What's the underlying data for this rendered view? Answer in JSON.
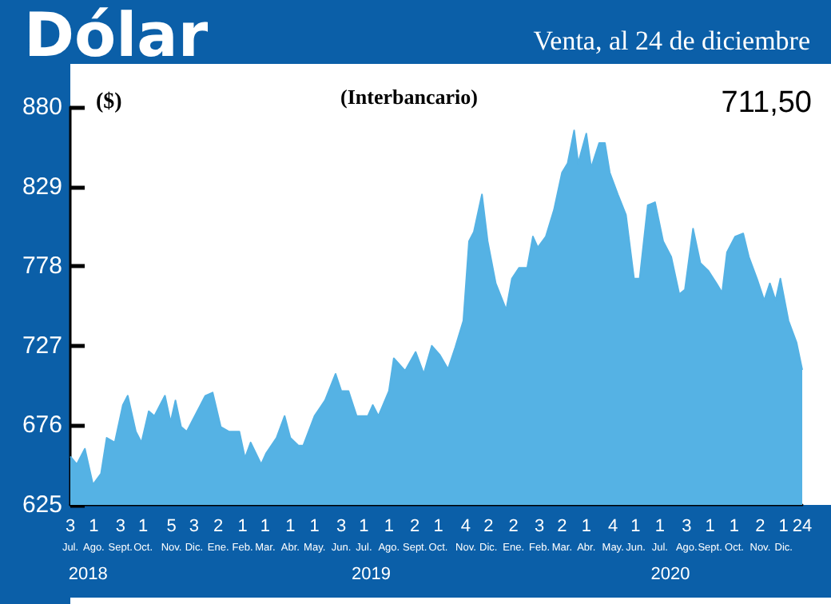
{
  "chart_data": {
    "type": "area",
    "title": "Dólar",
    "subtitle": "Venta, al 24 de diciembre",
    "ylabel": "($)",
    "annotations": [
      "(Interbancario)",
      "711,50"
    ],
    "color": "#55b2e4",
    "x": [
      "2018-07-03",
      "2018-07-11",
      "2018-07-21",
      "2018-07-31",
      "2018-08-10",
      "2018-08-17",
      "2018-08-27",
      "2018-09-06",
      "2018-09-12",
      "2018-09-22",
      "2018-09-29",
      "2018-10-08",
      "2018-10-15",
      "2018-10-22",
      "2018-10-28",
      "2018-11-04",
      "2018-11-10",
      "2018-11-17",
      "2018-11-24",
      "2018-12-07",
      "2018-12-17",
      "2018-12-26",
      "2019-01-05",
      "2019-01-15",
      "2019-01-28",
      "2019-02-04",
      "2019-02-11",
      "2019-02-24",
      "2019-03-02",
      "2019-03-15",
      "2019-03-25",
      "2019-04-01",
      "2019-04-11",
      "2019-04-17",
      "2019-05-01",
      "2019-05-14",
      "2019-05-27",
      "2019-06-03",
      "2019-06-12",
      "2019-06-22",
      "2019-07-06",
      "2019-07-12",
      "2019-07-19",
      "2019-08-01",
      "2019-08-07",
      "2019-08-21",
      "2019-09-03",
      "2019-09-13",
      "2019-09-23",
      "2019-10-03",
      "2019-10-13",
      "2019-10-22",
      "2019-11-01",
      "2019-11-08",
      "2019-11-14",
      "2019-11-24",
      "2019-12-01",
      "2019-12-11",
      "2019-12-24",
      "2019-12-31",
      "2020-01-09",
      "2020-01-19",
      "2020-01-26",
      "2020-02-01",
      "2020-02-11",
      "2020-02-21",
      "2020-03-02",
      "2020-03-09",
      "2020-03-17",
      "2020-03-22",
      "2020-04-01",
      "2020-04-07",
      "2020-04-17",
      "2020-04-24",
      "2020-04-30",
      "2020-05-10",
      "2020-05-20",
      "2020-05-30",
      "2020-06-06",
      "2020-06-16",
      "2020-06-25",
      "2020-07-05",
      "2020-07-15",
      "2020-07-25",
      "2020-08-01",
      "2020-08-11",
      "2020-08-20",
      "2020-08-30",
      "2020-09-09",
      "2020-09-16",
      "2020-09-22",
      "2020-10-02",
      "2020-10-12",
      "2020-10-19",
      "2020-10-29",
      "2020-11-07",
      "2020-11-14",
      "2020-11-21",
      "2020-11-27",
      "2020-12-07",
      "2020-12-17",
      "2020-12-24"
    ],
    "values": [
      656,
      651,
      661,
      638,
      645,
      668,
      665,
      689,
      695,
      672,
      665,
      685,
      682,
      689,
      695,
      678,
      692,
      675,
      672,
      685,
      695,
      697,
      675,
      672,
      672,
      655,
      665,
      651,
      658,
      668,
      682,
      668,
      663,
      663,
      682,
      692,
      709,
      698,
      698,
      682,
      682,
      689,
      682,
      698,
      719,
      711,
      723,
      709,
      727,
      721,
      712,
      726,
      743,
      794,
      800,
      824,
      794,
      767,
      750,
      770,
      777,
      777,
      797,
      790,
      797,
      814,
      838,
      844,
      865,
      844,
      863,
      841,
      857,
      857,
      838,
      824,
      811,
      770,
      770,
      817,
      819,
      794,
      784,
      760,
      763,
      802,
      780,
      775,
      767,
      761,
      787,
      797,
      799,
      784,
      770,
      756,
      767,
      756,
      770,
      743,
      729,
      711.5
    ],
    "xlim": [
      "2018-07-03",
      "2020-12-24"
    ],
    "xticks": [
      {
        "value": "2018-07-03",
        "label": "3\nJul."
      },
      {
        "value": "2018-08-01",
        "label": "1\nAgo."
      },
      {
        "value": "2018-09-03",
        "label": "3\nSept."
      },
      {
        "value": "2018-10-01",
        "label": "1\nOct."
      },
      {
        "value": "2018-11-05",
        "label": "5\nNov."
      },
      {
        "value": "2018-12-03",
        "label": "3\nDic."
      },
      {
        "value": "2019-01-02",
        "label": "2\nEne."
      },
      {
        "value": "2019-02-01",
        "label": "1\nFeb."
      },
      {
        "value": "2019-03-01",
        "label": "1\nMar."
      },
      {
        "value": "2019-04-01",
        "label": "1\nAbr."
      },
      {
        "value": "2019-05-01",
        "label": "1\nMay."
      },
      {
        "value": "2019-06-03",
        "label": "3\nJun."
      },
      {
        "value": "2019-07-01",
        "label": "1\nJul."
      },
      {
        "value": "2019-08-01",
        "label": "1\nAgo."
      },
      {
        "value": "2019-09-02",
        "label": "2\nSept."
      },
      {
        "value": "2019-10-01",
        "label": "1\nOct."
      },
      {
        "value": "2019-11-04",
        "label": "4\nNov."
      },
      {
        "value": "2019-12-02",
        "label": "2\nDic."
      },
      {
        "value": "2020-01-02",
        "label": "2\nEne."
      },
      {
        "value": "2020-02-03",
        "label": "3\nFeb."
      },
      {
        "value": "2020-03-02",
        "label": "2\nMar."
      },
      {
        "value": "2020-04-01",
        "label": "1\nAbr."
      },
      {
        "value": "2020-05-04",
        "label": "4\nMay."
      },
      {
        "value": "2020-06-01",
        "label": "1\nJun."
      },
      {
        "value": "2020-07-01",
        "label": "1\nJul."
      },
      {
        "value": "2020-08-03",
        "label": "3\nAgo."
      },
      {
        "value": "2020-09-01",
        "label": "1\nSept."
      },
      {
        "value": "2020-10-01",
        "label": "1\nOct."
      },
      {
        "value": "2020-11-02",
        "label": "2\nNov."
      },
      {
        "value": "2020-12-01",
        "label": "1\nDic."
      },
      {
        "value": "2020-12-24",
        "label": "24"
      }
    ],
    "x2lim": [
      "2018-07-03",
      "2020-12-24"
    ],
    "x2ticks": [
      {
        "value": "2018-07-25",
        "label": "2018"
      },
      {
        "value": "2019-07-10",
        "label": "2019"
      },
      {
        "value": "2020-07-14",
        "label": "2020"
      }
    ],
    "ylim": [
      625,
      880
    ],
    "yticks": [
      625,
      676,
      727,
      778,
      829,
      880
    ]
  }
}
